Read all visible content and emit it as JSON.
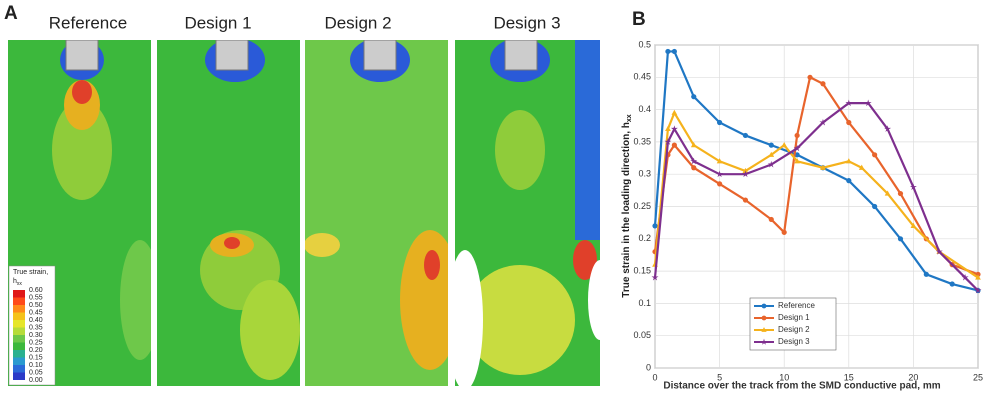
{
  "panel_a": {
    "label": "A",
    "titles": [
      "Reference",
      "Design 1",
      "Design 2",
      "Design 3"
    ],
    "colorbar": {
      "title": "True strain,",
      "symbol": "h",
      "symbol_sub": "xx",
      "labels": [
        "0.60",
        "0.55",
        "0.50",
        "0.45",
        "0.40",
        "0.35",
        "0.30",
        "0.25",
        "0.20",
        "0.15",
        "0.10",
        "0.05",
        "0.00"
      ]
    }
  },
  "chart_data": {
    "type": "line",
    "panel_label": "B",
    "xlabel": "Distance over the track from the SMD conductive pad, mm",
    "ylabel": "True strain in the loading direction, h",
    "ylabel_sub": "xx",
    "xlim": [
      0,
      25
    ],
    "xticks": [
      0,
      5,
      10,
      15,
      20,
      25
    ],
    "ylim": [
      0,
      0.5
    ],
    "yticks": [
      0,
      0.05,
      0.1,
      0.15,
      0.2,
      0.25,
      0.3,
      0.35,
      0.4,
      0.45,
      0.5
    ],
    "grid": true,
    "legend": "bottom",
    "series": [
      {
        "name": "Reference",
        "color": "#1f77c4",
        "marker": "circle",
        "x": [
          0,
          1,
          1.5,
          3,
          5,
          7,
          9,
          11,
          13,
          15,
          17,
          19,
          21,
          23,
          25
        ],
        "values": [
          0.22,
          0.49,
          0.49,
          0.42,
          0.38,
          0.36,
          0.345,
          0.33,
          0.31,
          0.29,
          0.25,
          0.2,
          0.145,
          0.13,
          0.12
        ]
      },
      {
        "name": "Design 1",
        "color": "#e8642c",
        "marker": "circle",
        "x": [
          0,
          1,
          1.5,
          3,
          5,
          7,
          9,
          10,
          11,
          12,
          13,
          15,
          17,
          19,
          21,
          23,
          25
        ],
        "values": [
          0.18,
          0.33,
          0.345,
          0.31,
          0.285,
          0.26,
          0.23,
          0.21,
          0.36,
          0.45,
          0.44,
          0.38,
          0.33,
          0.27,
          0.2,
          0.16,
          0.145
        ]
      },
      {
        "name": "Design 2",
        "color": "#f5b21c",
        "marker": "triangle",
        "x": [
          0,
          1,
          1.5,
          3,
          5,
          7,
          9,
          10,
          11,
          13,
          15,
          16,
          18,
          20,
          22,
          25
        ],
        "values": [
          0.16,
          0.37,
          0.395,
          0.345,
          0.32,
          0.305,
          0.33,
          0.345,
          0.32,
          0.31,
          0.32,
          0.31,
          0.27,
          0.22,
          0.18,
          0.14
        ]
      },
      {
        "name": "Design 3",
        "color": "#7e2f8e",
        "marker": "star",
        "x": [
          0,
          1,
          1.5,
          3,
          5,
          7,
          9,
          11,
          13,
          15,
          16.5,
          18,
          20,
          22,
          24,
          25
        ],
        "values": [
          0.14,
          0.35,
          0.37,
          0.32,
          0.3,
          0.3,
          0.315,
          0.34,
          0.38,
          0.41,
          0.41,
          0.37,
          0.28,
          0.18,
          0.14,
          0.12
        ]
      }
    ]
  }
}
